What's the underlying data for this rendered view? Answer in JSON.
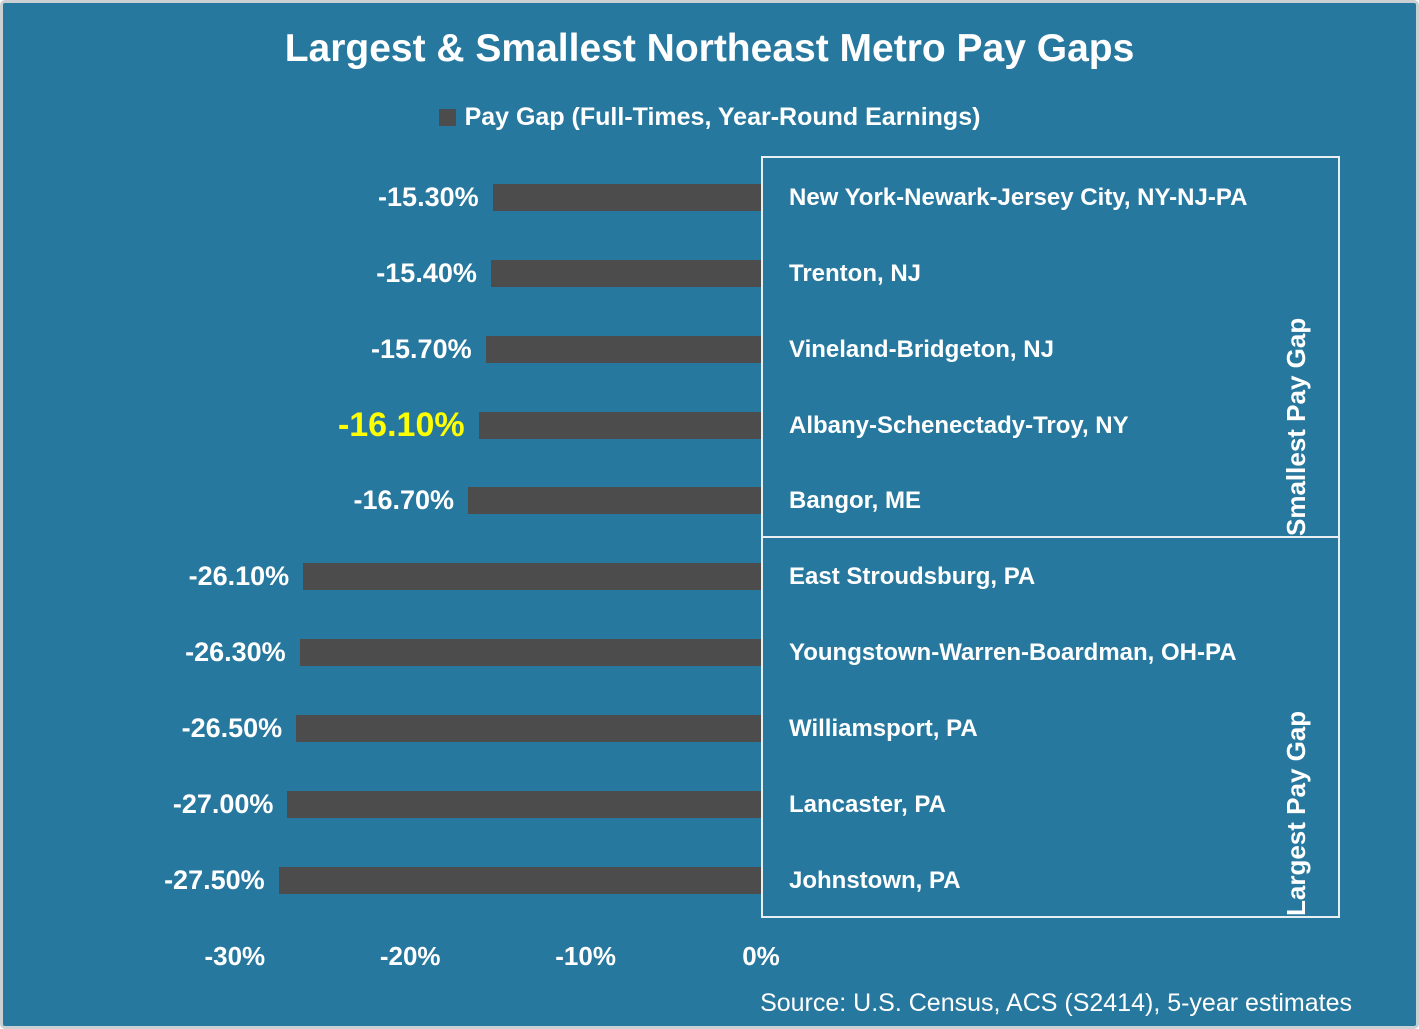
{
  "title": "Largest & Smallest Northeast Metro Pay Gaps",
  "legend": {
    "label": "Pay Gap (Full-Times, Year-Round Earnings)",
    "swatch": "legend-square"
  },
  "source": "Source: U.S. Census, ACS (S2414), 5-year estimates",
  "colors": {
    "background": "#27789E",
    "bar": "#4C4C4C",
    "highlight_text": "#FFFF00",
    "text": "#FFFFFF",
    "box_border": "#E9EEF1"
  },
  "chart_data": {
    "type": "bar",
    "orientation": "horizontal",
    "title": "Largest & Smallest Northeast Metro Pay Gaps",
    "legend_entry": "Pay Gap (Full-Times, Year-Round Earnings)",
    "categories": [
      "New York-Newark-Jersey City, NY-NJ-PA",
      "Trenton, NJ",
      "Vineland-Bridgeton, NJ",
      "Albany-Schenectady-Troy, NY",
      "Bangor, ME",
      "East Stroudsburg, PA",
      "Youngstown-Warren-Boardman, OH-PA",
      "Williamsport, PA",
      "Lancaster, PA",
      "Johnstown, PA"
    ],
    "values": [
      -15.3,
      -15.4,
      -15.7,
      -16.1,
      -16.7,
      -26.1,
      -26.3,
      -26.5,
      -27.0,
      -27.5
    ],
    "value_labels": [
      "-15.30%",
      "-15.40%",
      "-15.70%",
      "-16.10%",
      "-16.70%",
      "-26.10%",
      "-26.30%",
      "-26.50%",
      "-27.00%",
      "-27.50%"
    ],
    "highlight_index": 3,
    "bar_color": "#4C4C4C",
    "highlight_label_color": "#FFFF00",
    "xlim": [
      -30,
      0
    ],
    "x_ticks": [
      {
        "label": "-30%",
        "value": -30
      },
      {
        "label": "-20%",
        "value": -20
      },
      {
        "label": "-10%",
        "value": -10
      },
      {
        "label": "0%",
        "value": 0
      }
    ],
    "grid": false,
    "legend_position": "top-center",
    "groups": [
      {
        "label": "Smallest Pay Gap",
        "start_index": 0,
        "end_index": 4
      },
      {
        "label": "Largest Pay Gap",
        "start_index": 5,
        "end_index": 9
      }
    ]
  }
}
